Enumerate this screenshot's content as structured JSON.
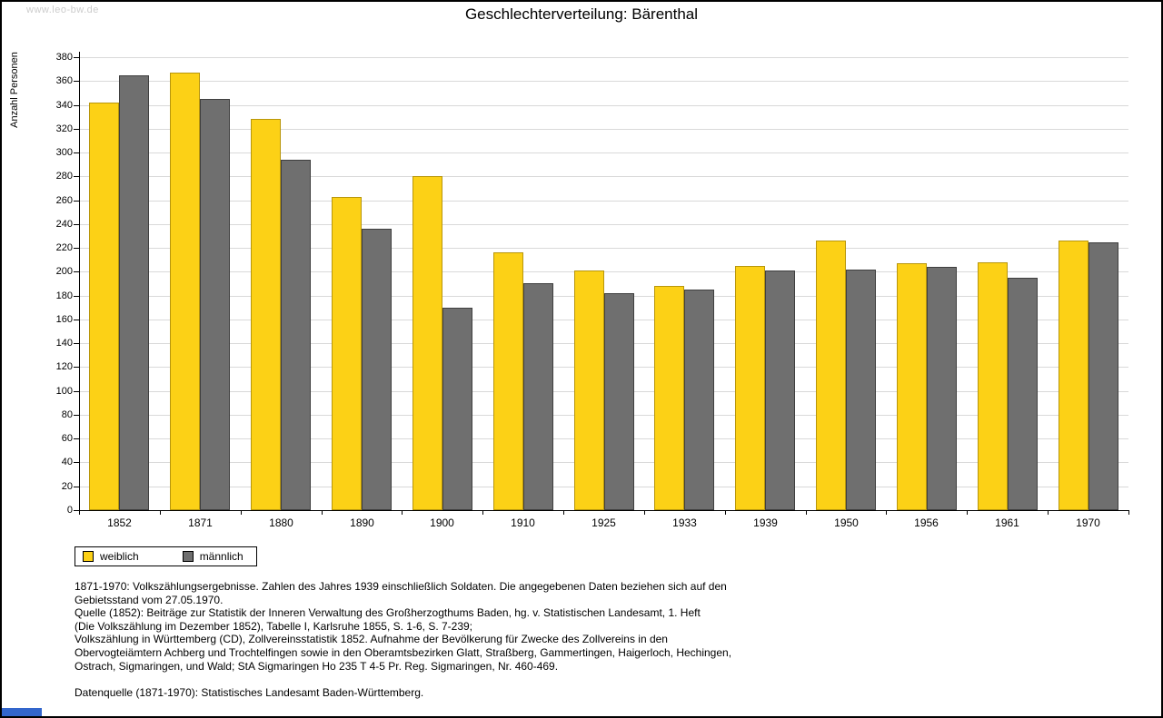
{
  "page": {
    "watermark": "www.leo-bw.de",
    "blue_strip_color": "#3366CC"
  },
  "chart_data": {
    "type": "bar",
    "title": "Geschlechterverteilung: Bärenthal",
    "xlabel": "",
    "ylabel": "Anzahl Personen",
    "ylim": [
      0,
      380
    ],
    "ytick_step": 20,
    "grid": true,
    "legend_position": "bottom-left",
    "categories": [
      "1852",
      "1871",
      "1880",
      "1890",
      "1900",
      "1910",
      "1925",
      "1933",
      "1939",
      "1950",
      "1956",
      "1961",
      "1970"
    ],
    "series": [
      {
        "name": "weiblich",
        "color": "#FCD116",
        "border": "#B8960B",
        "values": [
          342,
          367,
          328,
          263,
          280,
          216,
          201,
          188,
          205,
          226,
          207,
          208,
          226
        ]
      },
      {
        "name": "männlich",
        "color": "#6F6F6F",
        "border": "#3F3F3F",
        "values": [
          365,
          345,
          294,
          236,
          170,
          190,
          182,
          185,
          201,
          202,
          204,
          195,
          225
        ]
      }
    ]
  },
  "footer": {
    "lines": [
      "1871-1970: Volkszählungsergebnisse. Zahlen des Jahres 1939 einschließlich Soldaten. Die angegebenen Daten beziehen sich auf den",
      "Gebietsstand vom 27.05.1970.",
      "Quelle (1852): Beiträge zur Statistik der Inneren Verwaltung des Großherzogthums Baden, hg. v. Statistischen Landesamt, 1. Heft",
      "(Die Volkszählung im Dezember 1852), Tabelle I, Karlsruhe 1855, S. 1-6, S. 7-239;",
      "Volkszählung in Württemberg (CD), Zollvereinsstatistik 1852. Aufnahme der Bevölkerung für Zwecke des Zollvereins in den",
      "Obervogteiämtern Achberg und Trochtelfingen sowie in den Oberamtsbezirken Glatt, Straßberg, Gammertingen, Haigerloch, Hechingen,",
      "Ostrach, Sigmaringen, und Wald; StA Sigmaringen Ho 235 T 4-5 Pr. Reg. Sigmaringen, Nr. 460-469.",
      "",
      "Datenquelle (1871-1970): Statistisches Landesamt Baden-Württemberg."
    ]
  }
}
